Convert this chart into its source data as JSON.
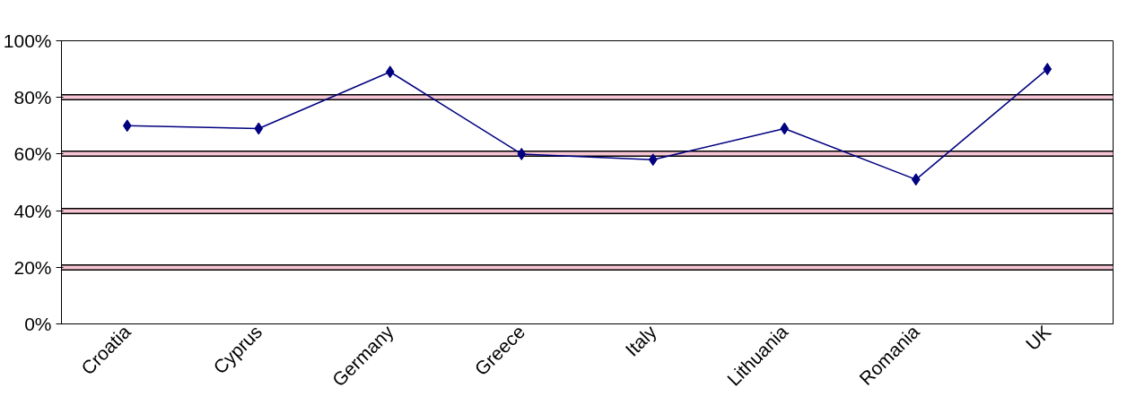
{
  "chart_data": {
    "type": "line",
    "categories": [
      "Croatia",
      "Cyprus",
      "Germany",
      "Greece",
      "Italy",
      "Lithuania",
      "Romania",
      "UK"
    ],
    "series": [
      {
        "color": "#000080",
        "values": [
          70,
          69,
          89,
          60,
          58,
          69,
          51,
          90
        ]
      }
    ],
    "ylim": [
      0,
      100
    ],
    "yticks": [
      {
        "value": 0,
        "label": "0%"
      },
      {
        "value": 20,
        "label": "20%"
      },
      {
        "value": 40,
        "label": "40%"
      },
      {
        "value": 60,
        "label": "60%"
      },
      {
        "value": 80,
        "label": "80%"
      },
      {
        "value": 100,
        "label": "100%"
      }
    ],
    "grid": "y",
    "marker": "diamond",
    "line_style": "solid"
  }
}
